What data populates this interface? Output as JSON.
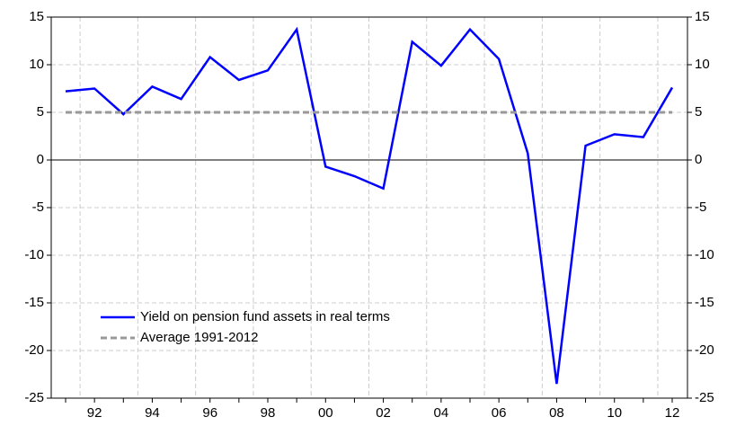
{
  "chart_data": {
    "type": "line",
    "categories": [
      null,
      "92",
      null,
      "94",
      null,
      "96",
      null,
      "98",
      null,
      "00",
      null,
      "02",
      null,
      "04",
      null,
      "06",
      null,
      "08",
      null,
      "10",
      null,
      "12"
    ],
    "series": [
      {
        "name": "Yield on pension fund assets in real terms",
        "color": "#0000ff",
        "style": "solid",
        "values": [
          7.2,
          7.5,
          4.8,
          7.7,
          6.4,
          10.8,
          8.4,
          9.4,
          13.7,
          -0.7,
          -1.7,
          -3.0,
          12.4,
          9.9,
          13.7,
          10.6,
          0.7,
          -23.5,
          1.5,
          2.7,
          2.4,
          7.6
        ]
      },
      {
        "name": "Average 1991-2012",
        "color": "#999999",
        "style": "dashed",
        "values": [
          5,
          5,
          5,
          5,
          5,
          5,
          5,
          5,
          5,
          5,
          5,
          5,
          5,
          5,
          5,
          5,
          5,
          5,
          5,
          5,
          5,
          5
        ]
      }
    ],
    "ylim": [
      -25,
      15
    ],
    "yticks": [
      -25,
      -20,
      -15,
      -10,
      -5,
      0,
      5,
      10,
      15
    ],
    "y2lim": [
      -25,
      15
    ],
    "y2ticks": [
      -25,
      -20,
      -15,
      -10,
      -5,
      0,
      5,
      10,
      15
    ],
    "grid": true,
    "legend": "lower left"
  }
}
